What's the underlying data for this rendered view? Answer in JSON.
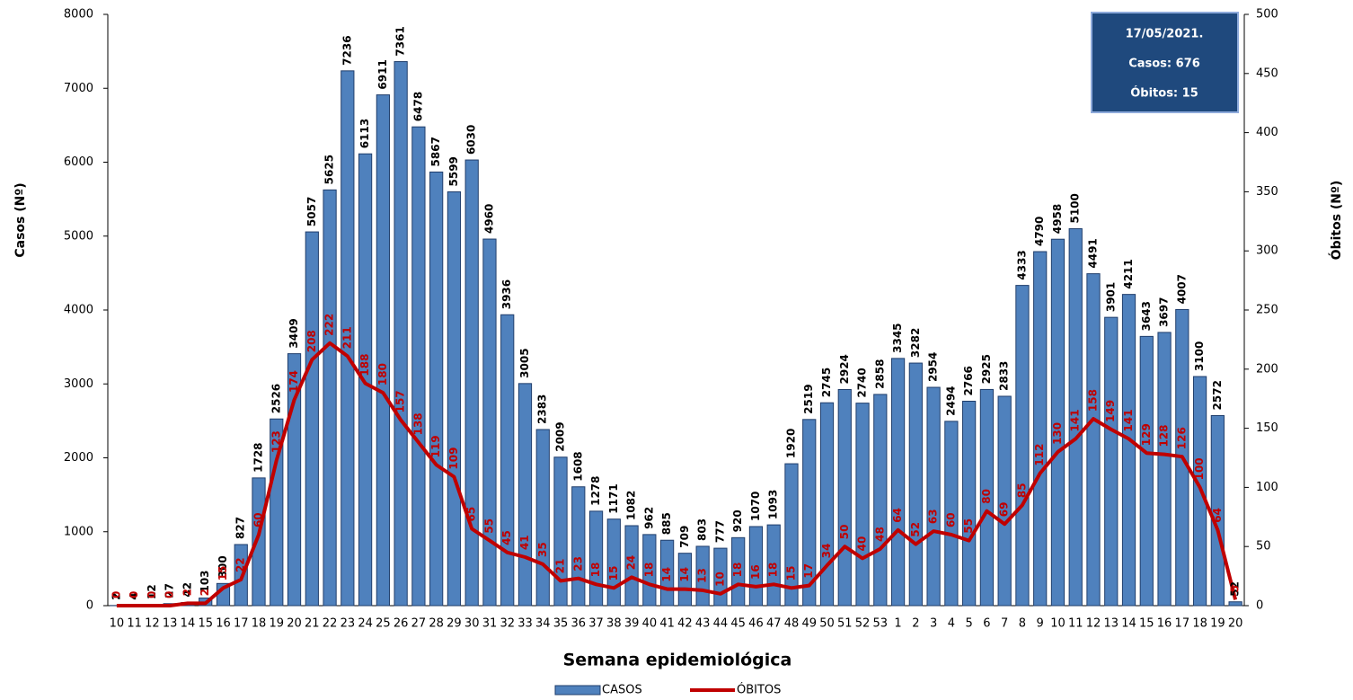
{
  "chart_data": {
    "type": "combo",
    "xlabel": "Semana epidemiológica",
    "ylabel": "Casos (Nº)",
    "y2label": "Óbitos (Nº)",
    "categories": [
      "10",
      "11",
      "12",
      "13",
      "14",
      "15",
      "16",
      "17",
      "18",
      "19",
      "20",
      "21",
      "22",
      "23",
      "24",
      "25",
      "26",
      "27",
      "28",
      "29",
      "30",
      "31",
      "32",
      "33",
      "34",
      "35",
      "36",
      "37",
      "38",
      "39",
      "40",
      "41",
      "42",
      "43",
      "44",
      "45",
      "46",
      "47",
      "48",
      "49",
      "50",
      "51",
      "52",
      "53",
      "1",
      "2",
      "3",
      "4",
      "5",
      "6",
      "7",
      "8",
      "9",
      "10",
      "11",
      "12",
      "13",
      "14",
      "15",
      "16",
      "17",
      "18",
      "19",
      "20"
    ],
    "series": [
      {
        "name": "CASOS",
        "type": "bar",
        "color": "#4f81bd",
        "label_color": "#000000",
        "values": [
          2,
          4,
          12,
          27,
          42,
          103,
          300,
          827,
          1728,
          2526,
          3409,
          5057,
          5625,
          7236,
          6113,
          6911,
          7361,
          6478,
          5867,
          5599,
          6030,
          4960,
          3936,
          3005,
          2383,
          2009,
          1608,
          1278,
          1171,
          1082,
          962,
          885,
          709,
          803,
          777,
          920,
          1070,
          1093,
          1920,
          2519,
          2745,
          2924,
          2740,
          2858,
          3345,
          3282,
          2954,
          2494,
          2766,
          2925,
          2833,
          4333,
          4790,
          4958,
          5100,
          4491,
          3901,
          4211,
          3643,
          3697,
          4007,
          3100,
          2572,
          52
        ]
      },
      {
        "name": "ÓBITOS",
        "type": "line",
        "axis": "y2",
        "color": "#c00000",
        "label_color": "#c00000",
        "values": [
          0,
          0,
          0,
          0,
          2,
          2,
          15,
          22,
          60,
          123,
          174,
          208,
          222,
          211,
          188,
          180,
          157,
          138,
          119,
          109,
          65,
          55,
          45,
          41,
          35,
          21,
          23,
          18,
          15,
          24,
          18,
          14,
          14,
          13,
          10,
          18,
          16,
          18,
          15,
          17,
          34,
          50,
          40,
          48,
          64,
          52,
          63,
          60,
          55,
          80,
          69,
          85,
          112,
          130,
          141,
          158,
          149,
          141,
          129,
          128,
          126,
          100,
          64,
          5
        ]
      }
    ],
    "ylim": [
      0,
      8000
    ],
    "yticks": [
      0,
      1000,
      2000,
      3000,
      4000,
      5000,
      6000,
      7000,
      8000
    ],
    "y2lim": [
      0,
      500
    ],
    "y2ticks": [
      0,
      50,
      100,
      150,
      200,
      250,
      300,
      350,
      400,
      450,
      500
    ],
    "grid": false,
    "legend": "bottom",
    "annotation": [
      "17/05/2021.",
      "Casos: 676",
      "Óbitos: 15"
    ]
  }
}
